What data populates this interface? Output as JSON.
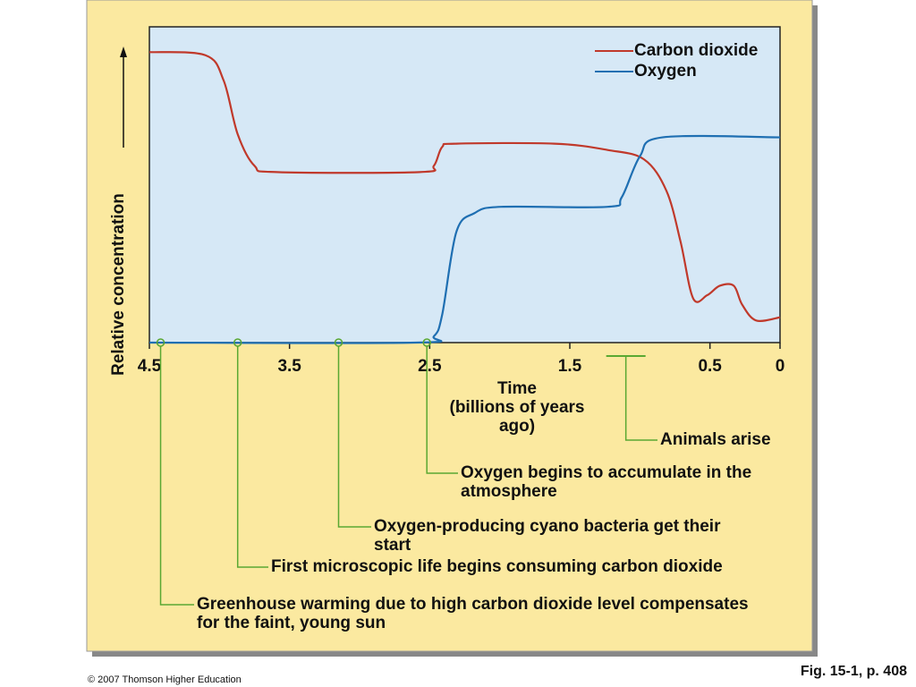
{
  "chart_data": {
    "type": "line",
    "y_label": "Relative concentration",
    "x_label": "Time",
    "x_units": "(billions of years ago)",
    "xlim": [
      4.5,
      0
    ],
    "ylim": [
      0,
      1
    ],
    "xticks": [
      4.5,
      3.5,
      2.5,
      1.5,
      0.5,
      0
    ],
    "legend": "top-right",
    "series": [
      {
        "name": "Carbon dioxide",
        "color": "#c0392b",
        "x": [
          4.5,
          4.1,
          3.97,
          3.87,
          3.75,
          3.59,
          2.57,
          2.47,
          2.41,
          2.31,
          1.61,
          1.23,
          0.97,
          0.81,
          0.71,
          0.62,
          0.52,
          0.43,
          0.33,
          0.27,
          0.17,
          0
        ],
        "values": [
          0.92,
          0.91,
          0.83,
          0.66,
          0.56,
          0.54,
          0.54,
          0.56,
          0.62,
          0.63,
          0.63,
          0.61,
          0.58,
          0.48,
          0.32,
          0.14,
          0.15,
          0.18,
          0.18,
          0.12,
          0.07,
          0.08
        ]
      },
      {
        "name": "Oxygen",
        "color": "#1f6fb2",
        "x": [
          4.5,
          2.6,
          2.47,
          2.41,
          2.31,
          2.18,
          1.99,
          1.23,
          1.13,
          1.0,
          0.84,
          0
        ],
        "values": [
          0,
          0,
          0.02,
          0.09,
          0.35,
          0.41,
          0.43,
          0.43,
          0.46,
          0.59,
          0.65,
          0.65
        ]
      }
    ],
    "annotations": [
      {
        "x": 1.1,
        "text": "Animals arise"
      },
      {
        "x": 2.52,
        "text": "Oxygen begins to accumulate in the atmosphere"
      },
      {
        "x": 3.15,
        "text": "Oxygen-producing cyano bacteria get their start"
      },
      {
        "x": 3.87,
        "text": "First microscopic life begins consuming carbon dioxide"
      },
      {
        "x": 4.42,
        "text": "Greenhouse warming due to high carbon dioxide level compensates for the faint, young sun"
      }
    ]
  },
  "footer": {
    "copyright": "© 2007 Thomson Higher Education",
    "figure": "Fig. 15-1, p. 408"
  }
}
